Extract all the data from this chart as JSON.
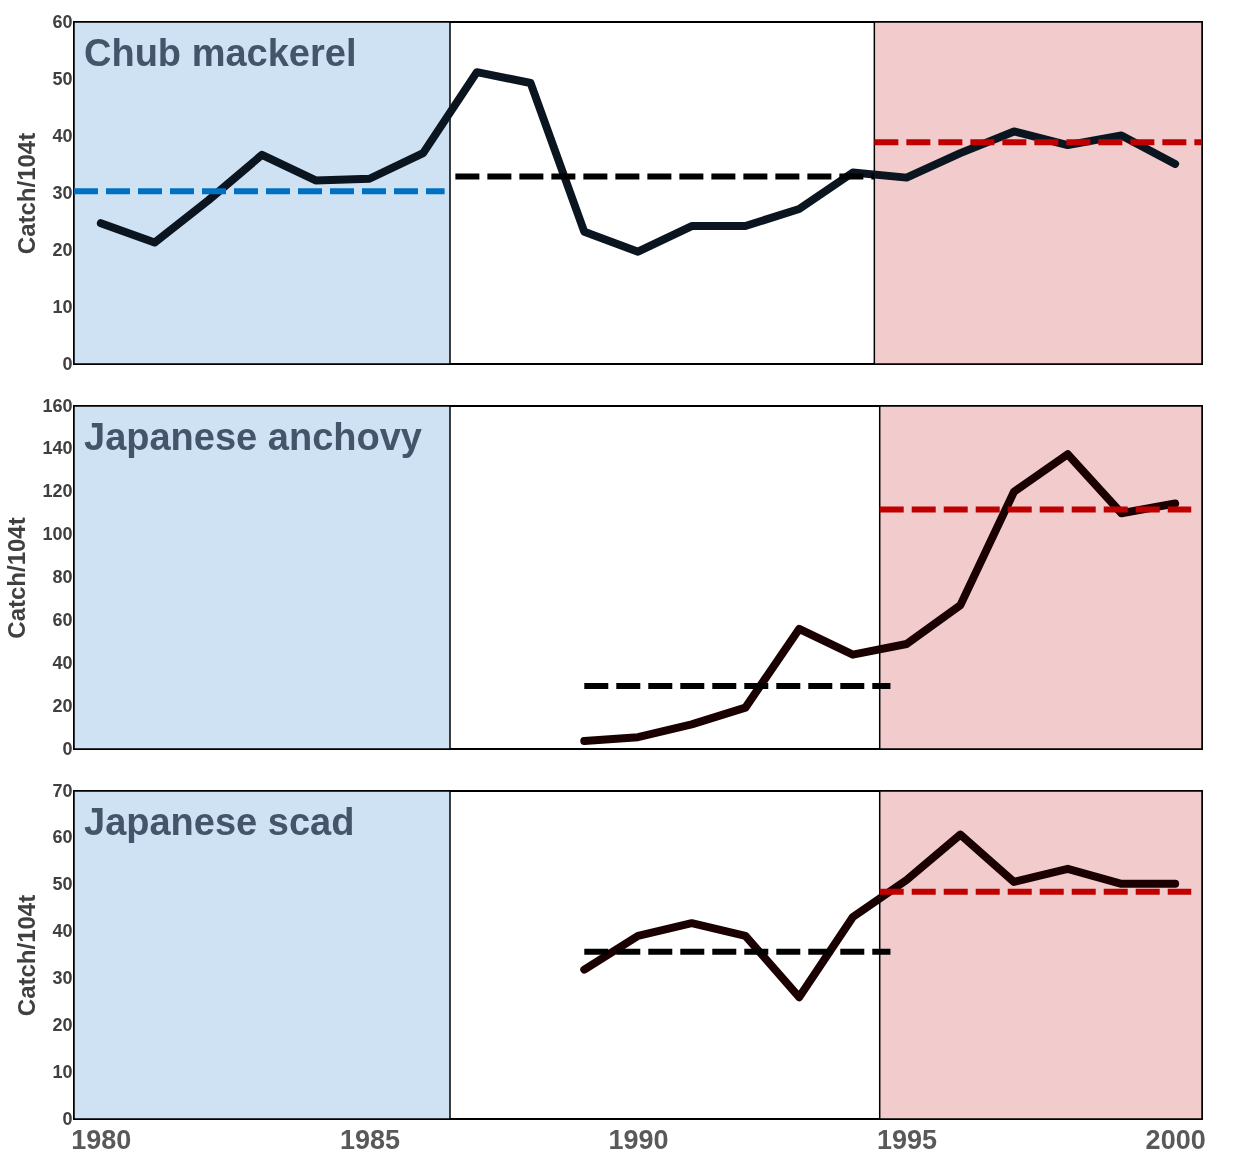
{
  "chart_data": [
    {
      "type": "line",
      "title": "Chub mackerel",
      "ylabel": "Catch/104t",
      "xlim": [
        1979.5,
        2000.5
      ],
      "xticks": [
        1980,
        1985,
        1990,
        1995,
        2000
      ],
      "ylim": [
        0,
        60
      ],
      "yticks": [
        0,
        10,
        20,
        30,
        40,
        50,
        60
      ],
      "tick_labels": "y",
      "grid": false,
      "line_style": "solid",
      "bands": [
        {
          "axis": "x",
          "from": 1979.5,
          "to": 1986.5,
          "color": "#cfe2f3"
        },
        {
          "axis": "x",
          "from": 1994.4,
          "to": 2000.5,
          "color": "#f2cccd"
        }
      ],
      "series": [
        {
          "type": "line",
          "color": "#0a1520",
          "x": [
            1980,
            1981,
            1982,
            1983,
            1984,
            1985,
            1986,
            1987,
            1988,
            1989,
            1990,
            1991,
            1992,
            1993,
            1994,
            1995,
            1996,
            1997,
            1998,
            1999,
            2000
          ],
          "values": [
            24.7,
            21.3,
            28.7,
            36.7,
            32.2,
            32.5,
            37,
            51.2,
            49.3,
            23.2,
            19.7,
            24.2,
            24.2,
            27.2,
            33.6,
            32.7,
            37,
            40.8,
            38.4,
            40.1,
            35.1
          ]
        },
        {
          "type": "line",
          "color": "#0070c0",
          "line_style": "dashed",
          "x": [
            1979.5,
            1986.4
          ],
          "values": [
            30.3,
            30.3
          ]
        },
        {
          "type": "line",
          "color": "#000000",
          "line_style": "dashed",
          "x": [
            1986.6,
            1994.4
          ],
          "values": [
            32.9,
            32.9
          ]
        },
        {
          "type": "line",
          "color": "#c00000",
          "line_style": "dashed",
          "x": [
            1994.4,
            2000.5
          ],
          "values": [
            38.9,
            38.9
          ]
        }
      ]
    },
    {
      "type": "line",
      "title": "Japanese anchovy",
      "ylabel": "Catch/104t",
      "xlim": [
        1979.5,
        2000.5
      ],
      "xticks": [
        1980,
        1985,
        1990,
        1995,
        2000
      ],
      "ylim": [
        0,
        160
      ],
      "yticks": [
        0,
        20,
        40,
        60,
        80,
        100,
        120,
        140,
        160
      ],
      "tick_labels": "y",
      "grid": false,
      "line_style": "solid",
      "bands": [
        {
          "axis": "x",
          "from": 1979.5,
          "to": 1986.5,
          "color": "#cfe2f3"
        },
        {
          "axis": "x",
          "from": 1994.5,
          "to": 2000.5,
          "color": "#f2cccd"
        }
      ],
      "series": [
        {
          "type": "line",
          "color": "#1a0000",
          "x": [
            1989,
            1990,
            1991,
            1992,
            1993,
            1994,
            1995,
            1996,
            1997,
            1998,
            1999,
            2000
          ],
          "values": [
            3.7,
            5.5,
            11.5,
            19.3,
            56,
            44,
            49,
            67,
            120,
            137.5,
            110,
            114.5
          ]
        },
        {
          "type": "line",
          "color": "#000000",
          "line_style": "dashed",
          "x": [
            1989,
            1994.7
          ],
          "values": [
            29.4,
            29.4
          ]
        },
        {
          "type": "line",
          "color": "#c00000",
          "line_style": "dashed",
          "x": [
            1994.5,
            2000.3
          ],
          "values": [
            111.7,
            111.7
          ]
        }
      ]
    },
    {
      "type": "line",
      "title": "Japanese scad",
      "ylabel": "Catch/104t",
      "xlim": [
        1979.5,
        2000.5
      ],
      "xticks": [
        1980,
        1985,
        1990,
        1995,
        2000
      ],
      "ylim": [
        0,
        70
      ],
      "yticks": [
        0,
        10,
        20,
        30,
        40,
        50,
        60,
        70
      ],
      "grid": false,
      "line_style": "solid",
      "bands": [
        {
          "axis": "x",
          "from": 1979.5,
          "to": 1986.5,
          "color": "#cfe2f3"
        },
        {
          "axis": "x",
          "from": 1994.5,
          "to": 2000.5,
          "color": "#f2cccd"
        }
      ],
      "series": [
        {
          "type": "line",
          "color": "#1a0000",
          "x": [
            1989,
            1990,
            1991,
            1992,
            1993,
            1994,
            1995,
            1996,
            1997,
            1998,
            1999,
            2000
          ],
          "values": [
            31.9,
            39.1,
            41.8,
            39.1,
            26,
            43.1,
            51,
            60.7,
            50.6,
            53.4,
            50.2,
            50.2
          ]
        },
        {
          "type": "line",
          "color": "#000000",
          "line_style": "dashed",
          "x": [
            1989,
            1994.7
          ],
          "values": [
            35.7,
            35.7
          ]
        },
        {
          "type": "line",
          "color": "#c00000",
          "line_style": "dashed",
          "x": [
            1994.5,
            2000.3
          ],
          "values": [
            48.5,
            48.5
          ]
        }
      ]
    }
  ]
}
